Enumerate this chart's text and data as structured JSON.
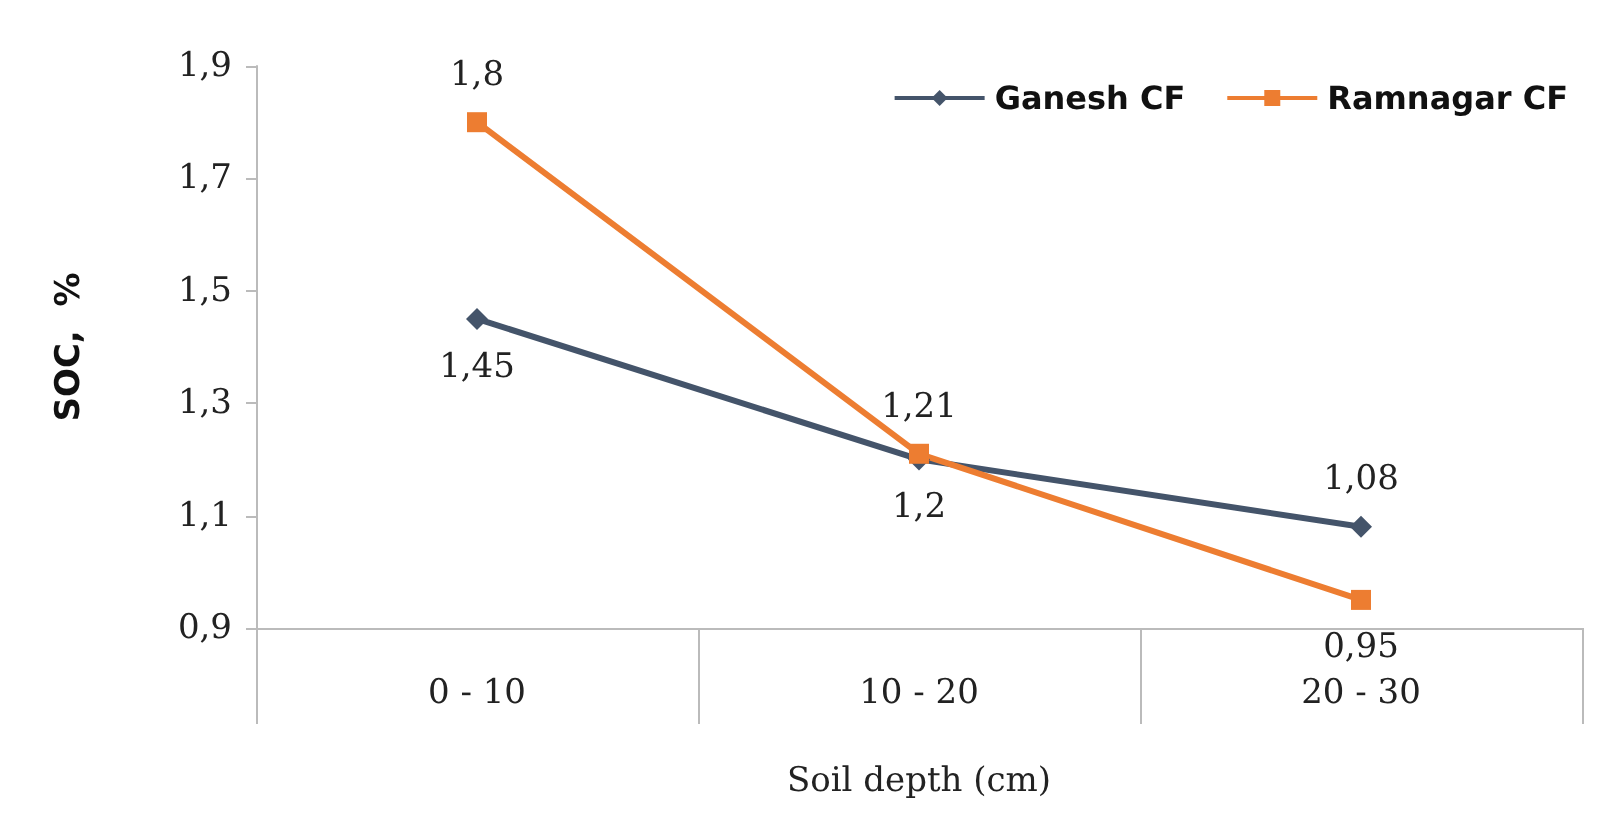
{
  "chart_data": {
    "type": "line",
    "xlabel": "Soil depth (cm)",
    "ylabel": "SOC,  %",
    "categories": [
      "0 - 10",
      "10 - 20",
      "20 - 30"
    ],
    "series": [
      {
        "name": "Ganesh CF",
        "color": "#44546a",
        "marker": "diamond",
        "values": [
          1.45,
          1.2,
          1.08
        ],
        "value_labels": [
          "1,45",
          "1,2",
          "1,08"
        ]
      },
      {
        "name": "Ramnagar CF",
        "color": "#ed7d31",
        "marker": "square",
        "values": [
          1.8,
          1.21,
          0.95
        ],
        "value_labels": [
          "1,8",
          "1,21",
          "0,95"
        ]
      }
    ],
    "ylim": [
      0.9,
      1.9
    ],
    "yticks": [
      {
        "value": 0.9,
        "label": "0,9"
      },
      {
        "value": 1.1,
        "label": "1,1"
      },
      {
        "value": 1.3,
        "label": "1,3"
      },
      {
        "value": 1.5,
        "label": "1,5"
      },
      {
        "value": 1.7,
        "label": "1,7"
      },
      {
        "value": 1.9,
        "label": "1,9"
      }
    ],
    "grid": false,
    "legend": "top right",
    "line_style": "solid"
  }
}
